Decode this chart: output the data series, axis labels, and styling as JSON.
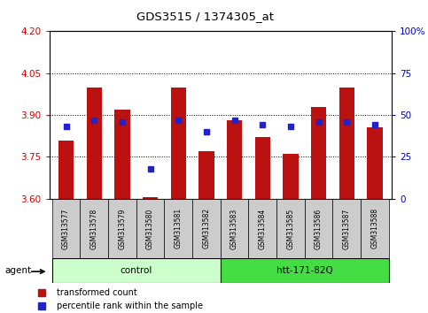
{
  "title": "GDS3515 / 1374305_at",
  "samples": [
    "GSM313577",
    "GSM313578",
    "GSM313579",
    "GSM313580",
    "GSM313581",
    "GSM313582",
    "GSM313583",
    "GSM313584",
    "GSM313585",
    "GSM313586",
    "GSM313587",
    "GSM313588"
  ],
  "red_values": [
    3.81,
    4.0,
    3.92,
    3.605,
    4.0,
    3.77,
    3.88,
    3.82,
    3.76,
    3.93,
    4.0,
    3.855
  ],
  "blue_values_pct": [
    43,
    47,
    46,
    18,
    47,
    40,
    47,
    44,
    43,
    46,
    46,
    44
  ],
  "ylim": [
    3.6,
    4.2
  ],
  "y2lim": [
    0,
    100
  ],
  "yticks": [
    3.6,
    3.75,
    3.9,
    4.05,
    4.2
  ],
  "y2ticks": [
    0,
    25,
    50,
    75,
    100
  ],
  "y2ticklabels": [
    "0",
    "25",
    "50",
    "75",
    "100%"
  ],
  "bar_bottom": 3.6,
  "bar_color": "#bb1111",
  "dot_color": "#2222cc",
  "control_label": "control",
  "treatment_label": "htt-171-82Q",
  "agent_label": "agent",
  "control_indices": [
    0,
    1,
    2,
    3,
    4,
    5
  ],
  "treatment_indices": [
    6,
    7,
    8,
    9,
    10,
    11
  ],
  "control_color": "#ccffcc",
  "treatment_color": "#44dd44",
  "left_axis_color": "#cc0000",
  "right_axis_color": "#0000cc",
  "tick_bg": "#cccccc",
  "legend1": "transformed count",
  "legend2": "percentile rank within the sample"
}
